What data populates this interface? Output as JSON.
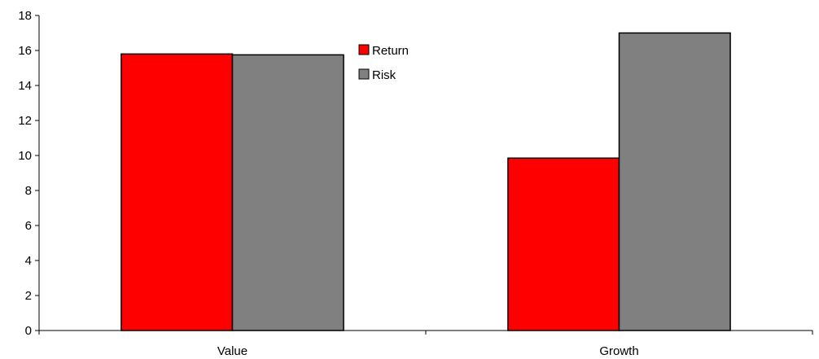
{
  "chart_data": {
    "type": "bar",
    "categories": [
      "Value",
      "Growth"
    ],
    "series": [
      {
        "name": "Return",
        "values": [
          15.8,
          9.85
        ],
        "color": "#ff0000"
      },
      {
        "name": "Risk",
        "values": [
          15.75,
          17.0
        ],
        "color": "#808080"
      }
    ],
    "ylim": [
      0,
      18
    ],
    "yticks": [
      "0",
      "2",
      "4",
      "6",
      "8",
      "10",
      "12",
      "14",
      "16",
      "18"
    ],
    "grid": false,
    "legend_position": "top-center"
  }
}
